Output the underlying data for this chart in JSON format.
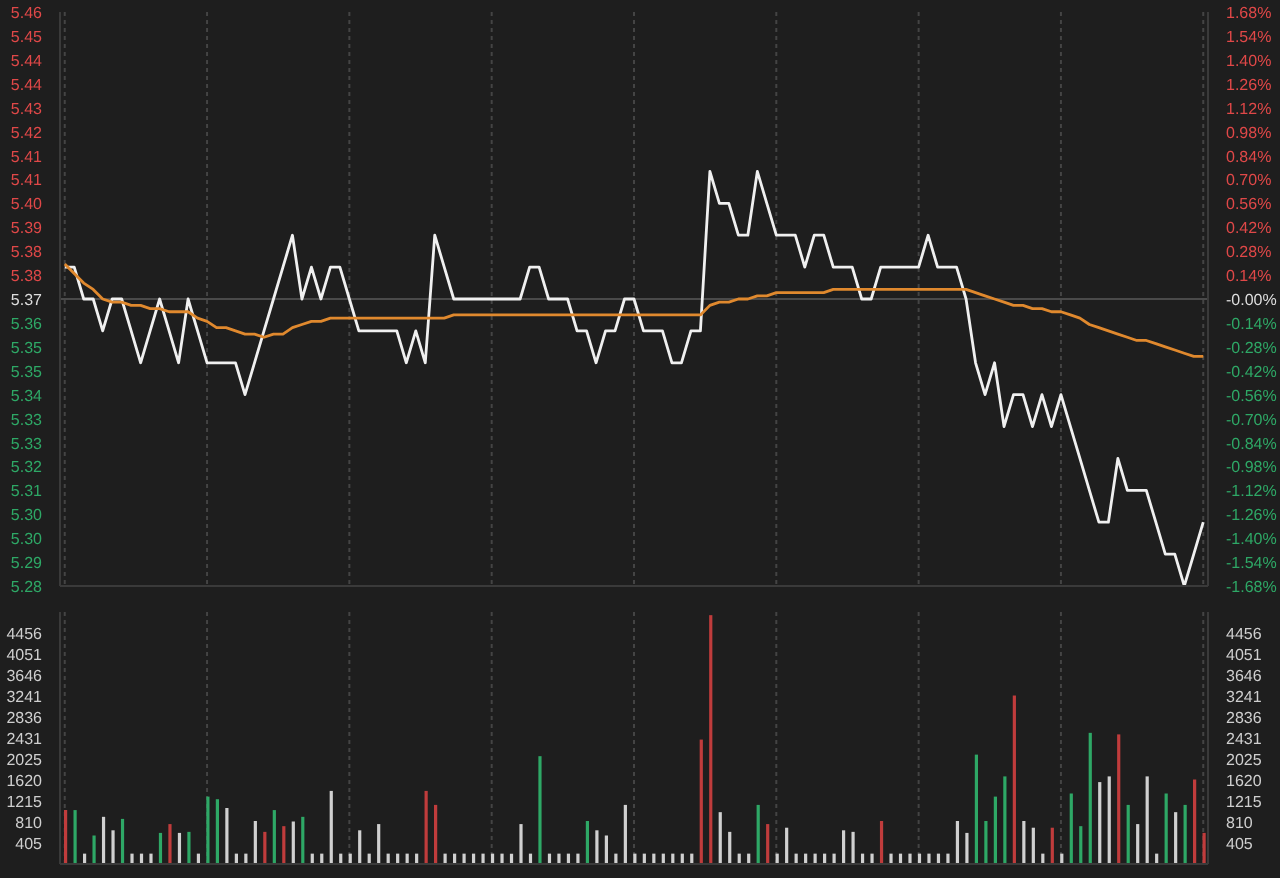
{
  "chart_data": [
    {
      "type": "line",
      "categories": [
        null,
        null,
        null,
        null,
        null,
        null,
        null,
        null,
        null,
        null,
        null,
        null,
        null,
        null,
        null,
        null,
        null,
        null,
        null,
        null,
        null,
        null,
        null,
        null,
        null,
        null,
        null,
        null,
        null,
        null,
        null,
        null,
        null,
        null,
        null,
        null,
        null,
        null,
        null,
        null,
        null,
        null,
        null,
        null,
        null,
        null,
        null,
        null,
        null,
        null,
        null,
        null,
        null,
        null,
        null,
        null,
        null,
        null,
        null,
        null,
        null,
        null,
        null,
        null,
        null,
        null,
        null,
        null,
        null,
        null,
        null,
        null,
        null,
        null,
        null,
        null,
        null,
        null,
        null,
        null,
        null,
        null,
        null,
        null,
        null,
        null,
        null,
        null,
        null,
        null,
        null,
        null,
        null,
        null,
        null,
        null,
        null,
        null,
        null,
        null,
        null,
        null,
        null,
        null,
        null,
        null,
        null,
        null,
        null,
        null,
        null,
        null,
        null,
        null,
        null,
        null,
        null,
        null,
        null,
        null,
        null
      ],
      "series": [
        {
          "color": "#f0f0f0",
          "values": [
            5.38,
            5.38,
            5.37,
            5.37,
            5.36,
            5.37,
            5.37,
            5.36,
            5.35,
            5.36,
            5.37,
            5.36,
            5.35,
            5.37,
            5.36,
            5.35,
            5.35,
            5.35,
            5.35,
            5.34,
            5.35,
            5.36,
            5.37,
            5.38,
            5.39,
            5.37,
            5.38,
            5.37,
            5.38,
            5.38,
            5.37,
            5.36,
            5.36,
            5.36,
            5.36,
            5.36,
            5.35,
            5.36,
            5.35,
            5.39,
            5.38,
            5.37,
            5.37,
            5.37,
            5.37,
            5.37,
            5.37,
            5.37,
            5.37,
            5.38,
            5.38,
            5.37,
            5.37,
            5.37,
            5.36,
            5.36,
            5.35,
            5.36,
            5.36,
            5.37,
            5.37,
            5.36,
            5.36,
            5.36,
            5.35,
            5.35,
            5.36,
            5.36,
            5.41,
            5.4,
            5.4,
            5.39,
            5.39,
            5.41,
            5.4,
            5.39,
            5.39,
            5.39,
            5.38,
            5.39,
            5.39,
            5.38,
            5.38,
            5.38,
            5.37,
            5.37,
            5.38,
            5.38,
            5.38,
            5.38,
            5.38,
            5.39,
            5.38,
            5.38,
            5.38,
            5.37,
            5.35,
            5.34,
            5.35,
            5.33,
            5.34,
            5.34,
            5.33,
            5.34,
            5.33,
            5.34,
            5.33,
            5.32,
            5.31,
            5.3,
            5.3,
            5.32,
            5.31,
            5.31,
            5.31,
            5.3,
            5.29,
            5.29,
            5.28,
            5.29,
            5.3
          ]
        },
        {
          "color": "#e0892e",
          "values": [
            5.381,
            5.378,
            5.375,
            5.373,
            5.37,
            5.369,
            5.369,
            5.368,
            5.368,
            5.367,
            5.367,
            5.366,
            5.366,
            5.366,
            5.364,
            5.363,
            5.361,
            5.361,
            5.36,
            5.359,
            5.359,
            5.358,
            5.359,
            5.359,
            5.361,
            5.362,
            5.363,
            5.363,
            5.364,
            5.364,
            5.364,
            5.364,
            5.364,
            5.364,
            5.364,
            5.364,
            5.364,
            5.364,
            5.364,
            5.364,
            5.364,
            5.365,
            5.365,
            5.365,
            5.365,
            5.365,
            5.365,
            5.365,
            5.365,
            5.365,
            5.365,
            5.365,
            5.365,
            5.365,
            5.365,
            5.365,
            5.365,
            5.365,
            5.365,
            5.365,
            5.365,
            5.365,
            5.365,
            5.365,
            5.365,
            5.365,
            5.365,
            5.365,
            5.368,
            5.369,
            5.369,
            5.37,
            5.37,
            5.371,
            5.371,
            5.372,
            5.372,
            5.372,
            5.372,
            5.372,
            5.372,
            5.373,
            5.373,
            5.373,
            5.373,
            5.373,
            5.373,
            5.373,
            5.373,
            5.373,
            5.373,
            5.373,
            5.373,
            5.373,
            5.373,
            5.373,
            5.372,
            5.371,
            5.37,
            5.369,
            5.368,
            5.368,
            5.367,
            5.367,
            5.366,
            5.366,
            5.365,
            5.364,
            5.362,
            5.361,
            5.36,
            5.359,
            5.358,
            5.357,
            5.357,
            5.356,
            5.355,
            5.354,
            5.353,
            5.352,
            5.352
          ]
        }
      ],
      "ylim": [
        5.28,
        5.46
      ],
      "yticks": [
        5.28,
        {
          "value": 5.2875,
          "label": "5.29"
        },
        {
          "value": 5.295,
          "label": "5.30"
        },
        {
          "value": 5.3025,
          "label": "5.30"
        },
        5.31,
        {
          "value": 5.3175,
          "label": "5.32"
        },
        {
          "value": 5.325,
          "label": "5.33"
        },
        {
          "value": 5.3325,
          "label": "5.33"
        },
        5.34,
        {
          "value": 5.3475,
          "label": "5.35"
        },
        {
          "value": 5.355,
          "label": "5.35"
        },
        {
          "value": 5.3625,
          "label": "5.36"
        },
        5.37,
        {
          "value": 5.3775,
          "label": "5.38"
        },
        {
          "value": 5.385,
          "label": "5.38"
        },
        {
          "value": 5.3925,
          "label": "5.39"
        },
        {
          "value": 5.4,
          "label": "5.40"
        },
        {
          "value": 5.4075,
          "label": "5.41"
        },
        {
          "value": 5.415,
          "label": "5.41"
        },
        {
          "value": 5.4225,
          "label": "5.42"
        },
        5.43,
        {
          "value": 5.4375,
          "label": "5.44"
        },
        {
          "value": 5.445,
          "label": "5.44"
        },
        {
          "value": 5.4525,
          "label": "5.45"
        },
        5.46
      ],
      "y2lim": [
        -1.68,
        1.68
      ],
      "y2ticks": [
        {
          "value": -1.68,
          "label": "-1.68%"
        },
        {
          "value": -1.54,
          "label": "-1.54%"
        },
        {
          "value": -1.4,
          "label": "-1.40%"
        },
        {
          "value": -1.26,
          "label": "-1.26%"
        },
        {
          "value": -1.12,
          "label": "-1.12%"
        },
        {
          "value": -0.98,
          "label": "-0.98%"
        },
        {
          "value": -0.84,
          "label": "-0.84%"
        },
        {
          "value": -0.7,
          "label": "-0.70%"
        },
        {
          "value": -0.56,
          "label": "-0.56%"
        },
        {
          "value": -0.42,
          "label": "-0.42%"
        },
        {
          "value": -0.28,
          "label": "-0.28%"
        },
        {
          "value": -0.14,
          "label": "-0.14%"
        },
        {
          "value": 0,
          "label": "-0.00%"
        },
        {
          "value": 0.14,
          "label": "0.14%"
        },
        {
          "value": 0.28,
          "label": "0.28%"
        },
        {
          "value": 0.42,
          "label": "0.42%"
        },
        {
          "value": 0.56,
          "label": "0.56%"
        },
        {
          "value": 0.7,
          "label": "0.70%"
        },
        {
          "value": 0.84,
          "label": "0.84%"
        },
        {
          "value": 0.98,
          "label": "0.98%"
        },
        {
          "value": 1.12,
          "label": "1.12%"
        },
        {
          "value": 1.26,
          "label": "1.26%"
        },
        {
          "value": 1.4,
          "label": "1.40%"
        },
        {
          "value": 1.54,
          "label": "1.54%"
        },
        {
          "value": 1.68,
          "label": "1.68%"
        }
      ],
      "ref_lines": [
        {
          "axis": "y",
          "value": 5.37,
          "color": "#4a4a4a"
        }
      ],
      "grid": "x",
      "tick_labels": "y",
      "marker": "none",
      "line_style": "solid"
    },
    {
      "type": "bar",
      "categories": [
        null,
        null,
        null,
        null,
        null,
        null,
        null,
        null,
        null,
        null,
        null,
        null,
        null,
        null,
        null,
        null,
        null,
        null,
        null,
        null,
        null,
        null,
        null,
        null,
        null,
        null,
        null,
        null,
        null,
        null,
        null,
        null,
        null,
        null,
        null,
        null,
        null,
        null,
        null,
        null,
        null,
        null,
        null,
        null,
        null,
        null,
        null,
        null,
        null,
        null,
        null,
        null,
        null,
        null,
        null,
        null,
        null,
        null,
        null,
        null,
        null,
        null,
        null,
        null,
        null,
        null,
        null,
        null,
        null,
        null,
        null,
        null,
        null,
        null,
        null,
        null,
        null,
        null,
        null,
        null,
        null,
        null,
        null,
        null,
        null,
        null,
        null,
        null,
        null,
        null,
        null,
        null,
        null,
        null,
        null,
        null,
        null,
        null,
        null,
        null,
        null,
        null,
        null,
        null,
        null,
        null,
        null,
        null,
        null,
        null,
        null,
        null,
        null,
        null,
        null,
        null,
        null,
        null,
        null,
        null,
        null
      ],
      "values": [
        1040,
        1040,
        200,
        550,
        910,
        650,
        870,
        200,
        200,
        200,
        600,
        770,
        600,
        620,
        200,
        1300,
        1250,
        1080,
        200,
        200,
        830,
        620,
        1040,
        730,
        820,
        910,
        200,
        200,
        1410,
        200,
        200,
        650,
        200,
        770,
        200,
        200,
        200,
        200,
        1410,
        1140,
        200,
        200,
        200,
        200,
        200,
        200,
        200,
        200,
        770,
        200,
        2080,
        200,
        200,
        200,
        200,
        830,
        650,
        550,
        200,
        1140,
        200,
        200,
        200,
        200,
        200,
        200,
        200,
        2400,
        4800,
        1000,
        620,
        200,
        200,
        1140,
        770,
        200,
        700,
        200,
        200,
        200,
        200,
        200,
        650,
        620,
        200,
        200,
        830,
        200,
        200,
        200,
        200,
        200,
        200,
        200,
        830,
        600,
        2110,
        830,
        1300,
        1690,
        3250,
        830,
        700,
        200,
        700,
        200,
        1360,
        730,
        2530,
        1580,
        1690,
        2500,
        1140,
        770,
        1690,
        200,
        1360,
        1000,
        1140,
        1630,
        600
      ],
      "colors": [
        "#c03c3c",
        "#2ea866",
        "#d0d0d0",
        "#2ea866",
        "#d0d0d0",
        "#d0d0d0",
        "#2ea866",
        "#d0d0d0",
        "#d0d0d0",
        "#d0d0d0",
        "#2ea866",
        "#c03c3c",
        "#d0d0d0",
        "#2ea866",
        "#d0d0d0",
        "#2ea866",
        "#2ea866",
        "#d0d0d0",
        "#d0d0d0",
        "#d0d0d0",
        "#d0d0d0",
        "#c03c3c",
        "#2ea866",
        "#c03c3c",
        "#d0d0d0",
        "#2ea866",
        "#d0d0d0",
        "#d0d0d0",
        "#d0d0d0",
        "#d0d0d0",
        "#d0d0d0",
        "#d0d0d0",
        "#d0d0d0",
        "#d0d0d0",
        "#d0d0d0",
        "#d0d0d0",
        "#d0d0d0",
        "#d0d0d0",
        "#c03c3c",
        "#c03c3c",
        "#d0d0d0",
        "#d0d0d0",
        "#d0d0d0",
        "#d0d0d0",
        "#d0d0d0",
        "#d0d0d0",
        "#d0d0d0",
        "#d0d0d0",
        "#d0d0d0",
        "#d0d0d0",
        "#2ea866",
        "#d0d0d0",
        "#d0d0d0",
        "#d0d0d0",
        "#d0d0d0",
        "#2ea866",
        "#d0d0d0",
        "#d0d0d0",
        "#d0d0d0",
        "#d0d0d0",
        "#d0d0d0",
        "#d0d0d0",
        "#d0d0d0",
        "#d0d0d0",
        "#d0d0d0",
        "#d0d0d0",
        "#d0d0d0",
        "#c03c3c",
        "#c03c3c",
        "#d0d0d0",
        "#d0d0d0",
        "#d0d0d0",
        "#d0d0d0",
        "#2ea866",
        "#c03c3c",
        "#d0d0d0",
        "#d0d0d0",
        "#d0d0d0",
        "#d0d0d0",
        "#d0d0d0",
        "#d0d0d0",
        "#d0d0d0",
        "#d0d0d0",
        "#d0d0d0",
        "#d0d0d0",
        "#d0d0d0",
        "#c03c3c",
        "#d0d0d0",
        "#d0d0d0",
        "#d0d0d0",
        "#d0d0d0",
        "#d0d0d0",
        "#d0d0d0",
        "#d0d0d0",
        "#d0d0d0",
        "#d0d0d0",
        "#2ea866",
        "#2ea866",
        "#2ea866",
        "#2ea866",
        "#c03c3c",
        "#d0d0d0",
        "#d0d0d0",
        "#d0d0d0",
        "#c03c3c",
        "#d0d0d0",
        "#2ea866",
        "#2ea866",
        "#2ea866",
        "#d0d0d0",
        "#d0d0d0",
        "#c03c3c",
        "#2ea866",
        "#d0d0d0",
        "#d0d0d0",
        "#d0d0d0",
        "#2ea866",
        "#d0d0d0",
        "#2ea866",
        "#c03c3c",
        "#c03c3c"
      ],
      "ylim": [
        0,
        4861
      ],
      "yticks": [
        405,
        810,
        1215,
        1620,
        2025,
        2431,
        2836,
        3241,
        3646,
        4051,
        4456
      ],
      "y2lim": [
        0,
        4861
      ],
      "y2ticks": [
        405,
        810,
        1215,
        1620,
        2025,
        2431,
        2836,
        3241,
        3646,
        4051,
        4456
      ],
      "grid": "x",
      "tick_labels": "y"
    }
  ]
}
